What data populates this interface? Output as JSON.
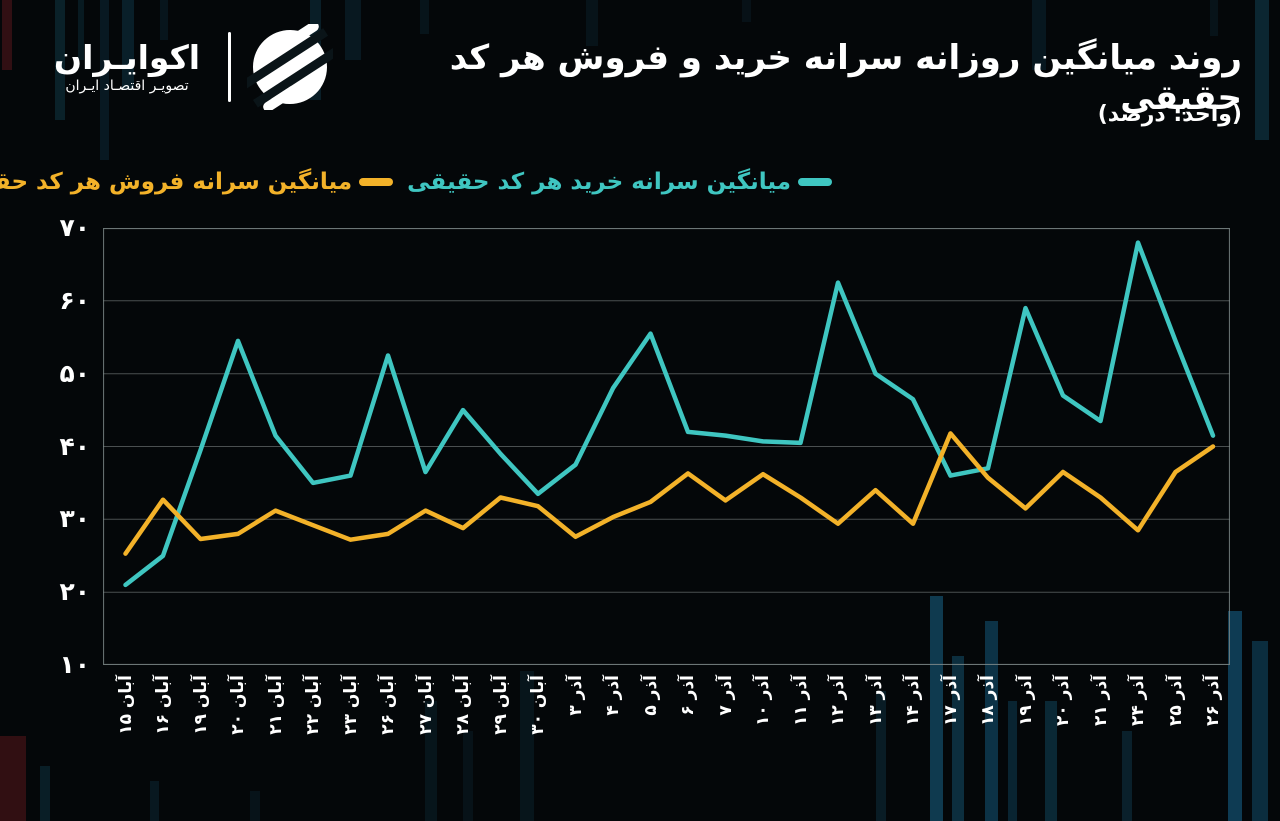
{
  "logo": {
    "name": "اکوایـران",
    "tagline": "تصویـر اقتصـاد ایـران"
  },
  "header": {
    "title": "روند میانگین روزانه سرانه خرید و فروش هر کد حقیقی",
    "subtitle": "(واحد: درصد)"
  },
  "legend": {
    "buy_label": "میانگین سرانه خرید هر کد حقیقی",
    "sell_label": "میانگین سرانه فروش هر کد حقیقی"
  },
  "colors": {
    "buy": "#3FC6C1",
    "sell": "#F3B229",
    "background": "#040709",
    "grid": "#9FA8A8",
    "border": "#7D8888",
    "text": "#FFFFFF"
  },
  "chart_data": {
    "type": "line",
    "title": "روند میانگین روزانه سرانه خرید و فروش هر کد حقیقی",
    "unit": "درصد",
    "categories": [
      "آبان ۱۵",
      "آبان ۱۶",
      "آبان ۱۹",
      "آبان ۲۰",
      "آبان ۲۱",
      "آبان ۲۲",
      "آبان ۲۳",
      "آبان ۲۶",
      "آبان ۲۷",
      "آبان ۲۸",
      "آبان ۲۹",
      "آبان ۳۰",
      "آذر ۳",
      "آذر ۴",
      "آذر ۵",
      "آذر ۶",
      "آذر ۷",
      "آذر ۱۰",
      "آذر ۱۱",
      "آذر ۱۲",
      "آذر ۱۳",
      "آذر ۱۴",
      "آذر ۱۷",
      "آذر ۱۸",
      "آذر ۱۹",
      "آذر ۲۰",
      "آذر ۲۱",
      "آذر ۲۴",
      "آذر ۲۵",
      "آذر ۲۶"
    ],
    "series": [
      {
        "name": "میانگین سرانه خرید هر کد حقیقی",
        "color_key": "buy",
        "values": [
          21,
          25,
          39.5,
          54.5,
          41.5,
          35,
          36,
          52.5,
          36.5,
          45,
          39,
          33.5,
          37.5,
          48,
          55.5,
          42,
          41.5,
          40.7,
          40.5,
          62.5,
          50,
          46.5,
          36,
          37,
          59,
          47,
          43.5,
          68,
          54.5,
          41.5
        ]
      },
      {
        "name": "میانگین سرانه فروش هر کد حقیقی",
        "color_key": "sell",
        "values": [
          25.3,
          32.7,
          27.3,
          28,
          31.2,
          29.2,
          27.2,
          28,
          31.2,
          28.8,
          33,
          31.8,
          27.6,
          30.3,
          32.4,
          36.3,
          32.6,
          36.2,
          33,
          29.4,
          34,
          29.4,
          41.8,
          35.7,
          31.5,
          36.5,
          33,
          28.5,
          36.5,
          40
        ]
      }
    ],
    "ylim": [
      10,
      70
    ],
    "y_ticks": [
      70,
      60,
      50,
      40,
      30,
      20,
      10
    ],
    "y_tick_labels_fa": [
      "۷۰",
      "۶۰",
      "۵۰",
      "۴۰",
      "۳۰",
      "۲۰",
      "۱۰"
    ],
    "grid": "horizontal",
    "legend_position": "top"
  }
}
